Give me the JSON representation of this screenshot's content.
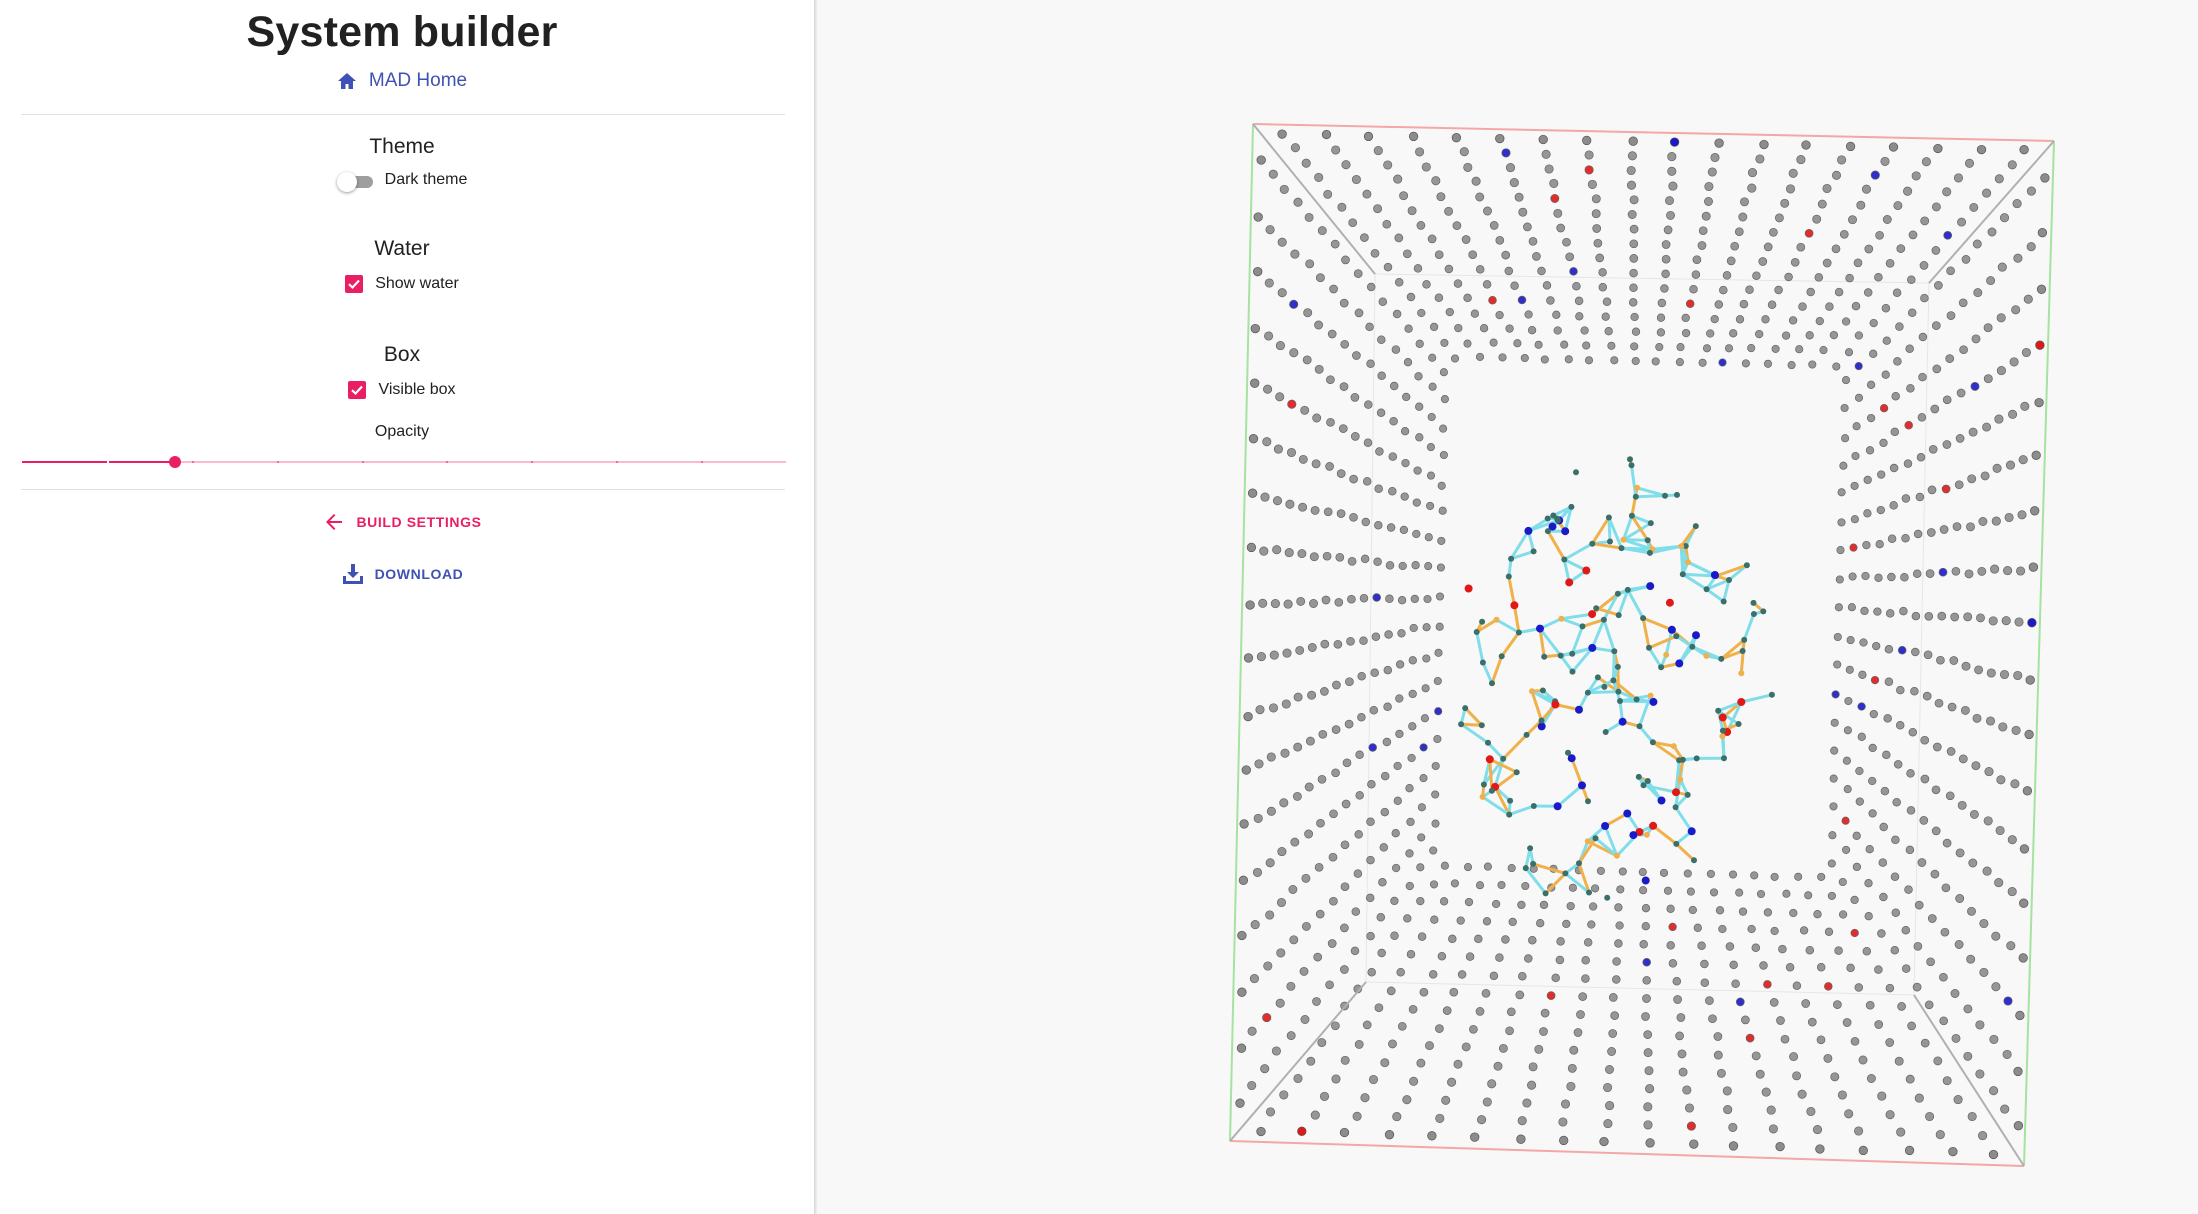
{
  "sidebar": {
    "title": "System builder",
    "home_link": {
      "label": "MAD Home",
      "icon": "home-icon"
    },
    "theme": {
      "heading": "Theme",
      "toggle_label": "Dark theme",
      "enabled": false
    },
    "water": {
      "heading": "Water",
      "checkbox_label": "Show water",
      "checked": true
    },
    "box": {
      "heading": "Box",
      "checkbox_label": "Visible box",
      "checked": true,
      "opacity_label": "Opacity",
      "opacity_value": 0.2,
      "opacity_steps": 9
    },
    "actions": {
      "build_settings": {
        "label": "Build settings",
        "icon": "arrow-left-icon"
      },
      "download": {
        "label": "Download",
        "icon": "download-icon"
      }
    }
  },
  "colors": {
    "accent": "#e91e63",
    "primary": "#3f51b5",
    "water_atom": "#8c8c8c",
    "bond_cyan": "#80deea",
    "bond_orange": "#f0b04a",
    "atom_nitrogen": "#1a1ac8",
    "atom_oxygen": "#e01818",
    "box_edge_x": "#f3a7a7",
    "box_edge_y": "#a6e3a0",
    "box_edge_z": "#b0b0b0"
  },
  "viewer": {
    "label": "molecule-3d-viewer"
  }
}
